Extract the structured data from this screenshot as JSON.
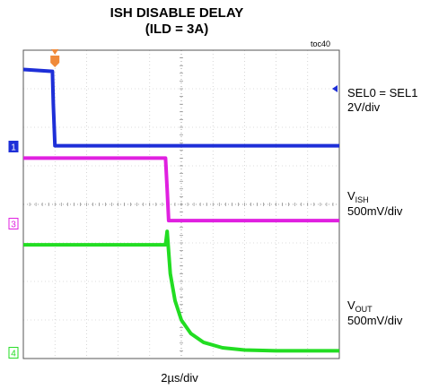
{
  "chart_data": {
    "type": "line",
    "title": "ISH DISABLE DELAY",
    "subtitle": "(ILD = 3A)",
    "figure_id": "toc40",
    "xlabel": "2µs/div",
    "x_divisions": 10,
    "y_divisions": 8,
    "xlim": [
      0,
      10
    ],
    "ylim": [
      0,
      8
    ],
    "grid": true,
    "colors": {
      "ch1": "#1e2fd8",
      "ch3": "#e020e0",
      "ch4": "#22dd22",
      "trigger": "#f08a3a"
    },
    "markers": {
      "ch1": "1",
      "ch3": "3",
      "ch4": "4"
    },
    "trigger_x_div": 1.0,
    "series": [
      {
        "name": "SEL0 = SEL1",
        "scale": "2V/div",
        "ground_div": 5.5,
        "x": [
          0,
          0.92,
          0.95,
          1.0,
          10
        ],
        "y": [
          7.5,
          7.45,
          6.6,
          5.52,
          5.52
        ]
      },
      {
        "name": "VISH",
        "scale": "500mV/div",
        "ground_div": 3.5,
        "x": [
          0,
          4.5,
          4.55,
          4.6,
          10
        ],
        "y": [
          5.2,
          5.2,
          4.4,
          3.58,
          3.58
        ]
      },
      {
        "name": "VOUT",
        "scale": "500mV/div",
        "ground_div": 0.15,
        "x": [
          0,
          4.5,
          4.55,
          4.65,
          4.8,
          5.0,
          5.3,
          5.7,
          6.3,
          7.0,
          8.0,
          10
        ],
        "y": [
          2.95,
          2.95,
          3.3,
          2.2,
          1.5,
          1.0,
          0.65,
          0.42,
          0.28,
          0.22,
          0.2,
          0.2
        ]
      }
    ]
  },
  "labels": {
    "ch1_name": "SEL0 = SEL1",
    "ch1_scale": "2V/div",
    "ch3_main": "V",
    "ch3_sub": "ISH",
    "ch3_scale": "500mV/div",
    "ch4_main": "V",
    "ch4_sub": "OUT",
    "ch4_scale": "500mV/div"
  }
}
